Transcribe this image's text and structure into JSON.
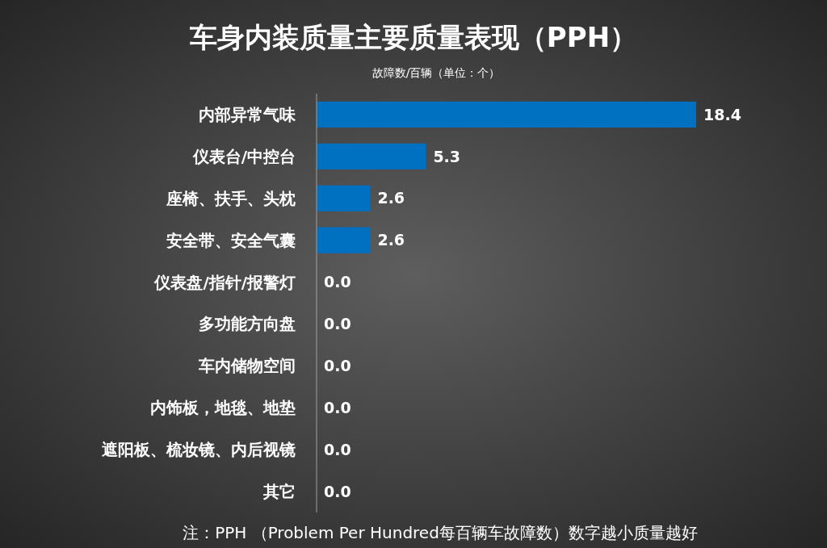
{
  "chart_data": {
    "type": "bar",
    "orientation": "horizontal",
    "title": "车身内装质量主要质量表现（PPH）",
    "subtitle": "故障数/百辆（单位：个）",
    "categories": [
      "内部异常气味",
      "仪表台/中控台",
      "座椅、扶手、头枕",
      "安全带、安全气囊",
      "仪表盘/指针/报警灯",
      "多功能方向盘",
      "车内储物空间",
      "内饰板，地毯、地垫",
      "遮阳板、梳妆镜、内后视镜",
      "其它"
    ],
    "values": [
      18.4,
      5.3,
      2.6,
      2.6,
      0,
      0,
      0,
      0,
      0,
      0
    ],
    "value_labels": [
      "18.4",
      "5.3",
      "2.6",
      "2.6",
      "0.0",
      "0.0",
      "0.0",
      "0.0",
      "0.0",
      "0.0"
    ],
    "color": "#0070c0",
    "annotations": [
      "注：PPH （Problem Per Hundred每百辆车故障数）数字越小质量越好"
    ]
  }
}
